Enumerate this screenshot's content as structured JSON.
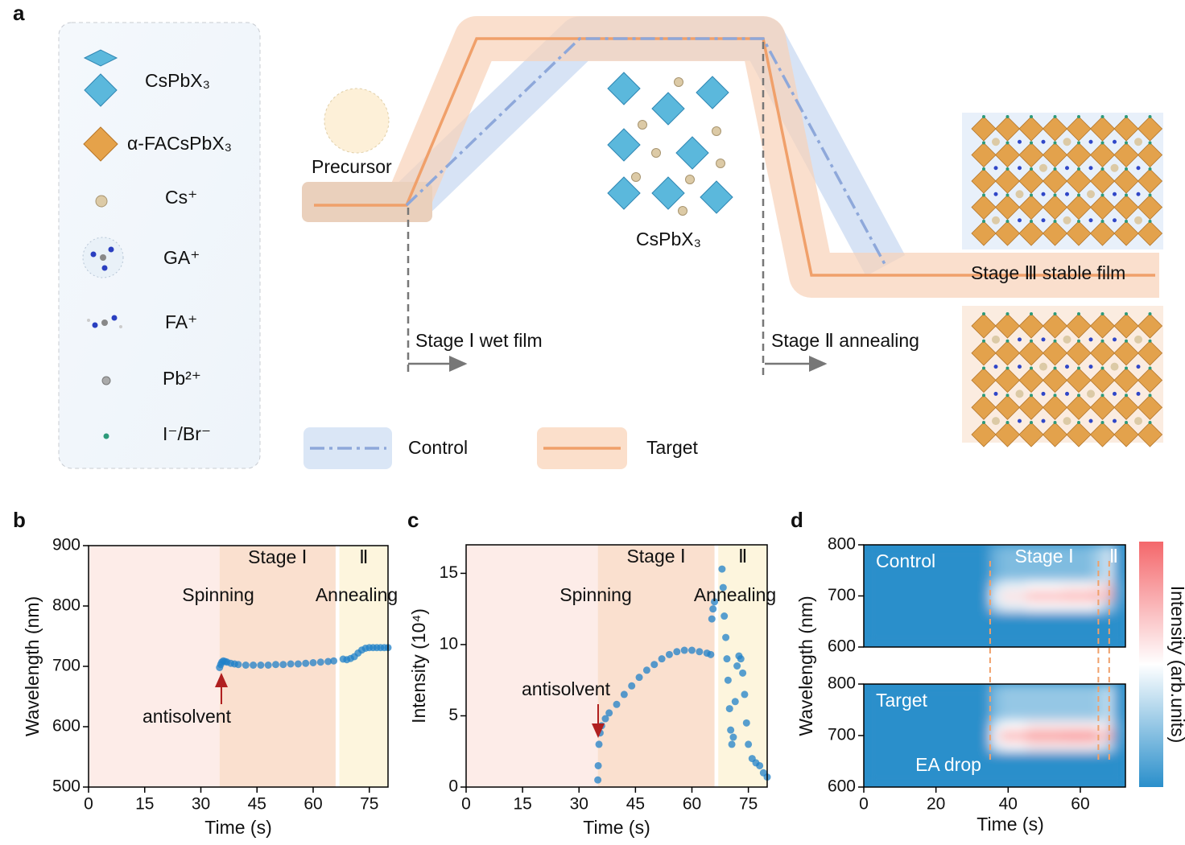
{
  "diagram": {
    "panel_label": "a",
    "legend_items": [
      "CsPbX₃",
      "α-FACsPbX₃",
      "Cs⁺",
      "GA⁺",
      "FA⁺",
      "Pb²⁺",
      "I⁻/Br⁻"
    ],
    "labels": {
      "precursor": "Precursor",
      "crystal": "CsPbX₃",
      "stage1": "Stage Ⅰ  wet film",
      "stage2": "Stage Ⅱ annealing",
      "stage3": "Stage Ⅲ stable film"
    },
    "legend": [
      "Control",
      "Target"
    ]
  },
  "chart_data": [
    {
      "type": "scatter",
      "panel_label": "b",
      "xlabel": "Time (s)",
      "ylabel": "Wavelength (nm)",
      "xlim": [
        0,
        80
      ],
      "xticks": [
        0,
        15,
        30,
        45,
        60,
        75
      ],
      "ylim": [
        500,
        900
      ],
      "yticks": [
        500,
        600,
        700,
        800,
        900
      ],
      "color": "#1f80c8",
      "stages": [
        {
          "start": 0,
          "end": 35,
          "color": "#fdece8"
        },
        {
          "label": "Stage Ⅰ",
          "start": 35,
          "end": 66,
          "color": "#fae0cf"
        },
        {
          "label": "Ⅱ",
          "start": 67,
          "end": 80,
          "color": "#fdf5dd"
        }
      ],
      "annotations": [
        "Spinning",
        "Annealing",
        "antisolvent"
      ],
      "x": [
        35,
        35.3,
        35.6,
        36,
        36.5,
        37,
        38,
        39,
        40,
        42,
        44,
        46,
        48,
        50,
        52,
        54,
        56,
        58,
        60,
        62,
        64,
        65.5,
        68,
        69,
        70,
        71,
        72,
        73,
        74,
        75,
        76,
        77,
        78,
        79,
        80
      ],
      "values": [
        698,
        703,
        707,
        709,
        708,
        707,
        705,
        704,
        703,
        702,
        702,
        702,
        702,
        703,
        703,
        704,
        704,
        705,
        706,
        707,
        708,
        709,
        712,
        711,
        713,
        716,
        722,
        727,
        730,
        731,
        731,
        731,
        731,
        731,
        731
      ]
    },
    {
      "type": "scatter",
      "panel_label": "c",
      "xlabel": "Time (s)",
      "ylabel": "Intensity (10⁴)",
      "xlim": [
        0,
        80
      ],
      "xticks": [
        0,
        15,
        30,
        45,
        60,
        75
      ],
      "ylim": [
        0,
        17
      ],
      "yticks": [
        0,
        5,
        10,
        15
      ],
      "color": "#1f80c8",
      "stages": [
        {
          "start": 0,
          "end": 35,
          "color": "#fdece8"
        },
        {
          "label": "Stage Ⅰ",
          "start": 35,
          "end": 66,
          "color": "#fae0cf"
        },
        {
          "label": "Ⅱ",
          "start": 67,
          "end": 80,
          "color": "#fdf5dd"
        }
      ],
      "annotations": [
        "Spinning",
        "Annealing",
        "antisolvent"
      ],
      "x": [
        35,
        35.1,
        35.3,
        35.6,
        36,
        37,
        38,
        40,
        42,
        44,
        46,
        48,
        50,
        52,
        54,
        56,
        58,
        60,
        62,
        64,
        65,
        65.3,
        65.6,
        66,
        68,
        68.3,
        68.6,
        69,
        69.3,
        69.6,
        70,
        70.3,
        70.6,
        71,
        71.5,
        72,
        72.5,
        73,
        73.5,
        74,
        74.5,
        75,
        76,
        77,
        78,
        79,
        80
      ],
      "values": [
        0.5,
        1.5,
        3,
        3.8,
        4.3,
        4.8,
        5.2,
        5.8,
        6.5,
        7.1,
        7.7,
        8.2,
        8.6,
        9,
        9.3,
        9.5,
        9.6,
        9.6,
        9.5,
        9.4,
        9.3,
        11.8,
        12.5,
        13,
        15.3,
        14,
        12,
        10.5,
        9,
        7.5,
        5.5,
        4,
        3,
        3.5,
        6,
        8.5,
        9.2,
        9,
        8,
        6.5,
        4.5,
        3,
        2,
        1.7,
        1.5,
        1,
        0.7
      ]
    },
    {
      "type": "heatmap",
      "panel_label": "d",
      "xlabel": "Time (s)",
      "ylabel": "Wavelength (nm)",
      "xlim": [
        0,
        72.5
      ],
      "xticks": [
        0,
        20,
        40,
        60
      ],
      "ylim": [
        600,
        800
      ],
      "yticks": [
        600,
        700,
        800
      ],
      "colormap": [
        "#2a8fcb",
        "#ffffff",
        "#f4676b"
      ],
      "colorbar_label": "Intensity (arb.units)",
      "stages": [
        {
          "label": "Stage Ⅰ",
          "start": 35,
          "end": 65
        },
        {
          "label": "Ⅱ",
          "start": 66,
          "end": 72.5
        }
      ],
      "markers_x": [
        35,
        65,
        68
      ],
      "annotations": [
        "EA drop"
      ],
      "xbins": [
        0,
        35,
        38,
        45,
        55,
        63,
        65,
        66,
        67,
        69,
        72.5
      ],
      "ybins": [
        600,
        670,
        690,
        710,
        730,
        800
      ],
      "panels": [
        {
          "name": "Control",
          "values": [
            [
              0,
              0,
              0,
              0,
              0,
              0,
              0,
              0,
              0,
              0
            ],
            [
              0,
              0.35,
              0.45,
              0.5,
              0.5,
              0.5,
              0.4,
              0.3,
              0.3,
              0.05
            ],
            [
              0,
              0.45,
              0.6,
              0.72,
              0.75,
              0.78,
              0.8,
              0.5,
              0.85,
              0.1
            ],
            [
              0,
              0.35,
              0.45,
              0.5,
              0.52,
              0.55,
              0.6,
              0.4,
              0.7,
              0.1
            ],
            [
              0,
              0.15,
              0.2,
              0.2,
              0.2,
              0.25,
              0.35,
              0.2,
              0.45,
              0.05
            ]
          ]
        },
        {
          "name": "Target",
          "values": [
            [
              0,
              0,
              0,
              0,
              0,
              0,
              0,
              0,
              0,
              0
            ],
            [
              0,
              0.4,
              0.5,
              0.55,
              0.55,
              0.55,
              0.45,
              0.3,
              0.4,
              0.05
            ],
            [
              0,
              0.55,
              0.75,
              0.85,
              0.88,
              0.85,
              0.8,
              0.5,
              0.9,
              0.1
            ],
            [
              0,
              0.4,
              0.5,
              0.55,
              0.55,
              0.55,
              0.5,
              0.4,
              0.6,
              0.1
            ],
            [
              0,
              0.2,
              0.25,
              0.25,
              0.25,
              0.25,
              0.3,
              0.25,
              0.4,
              0.05
            ]
          ]
        }
      ]
    }
  ]
}
